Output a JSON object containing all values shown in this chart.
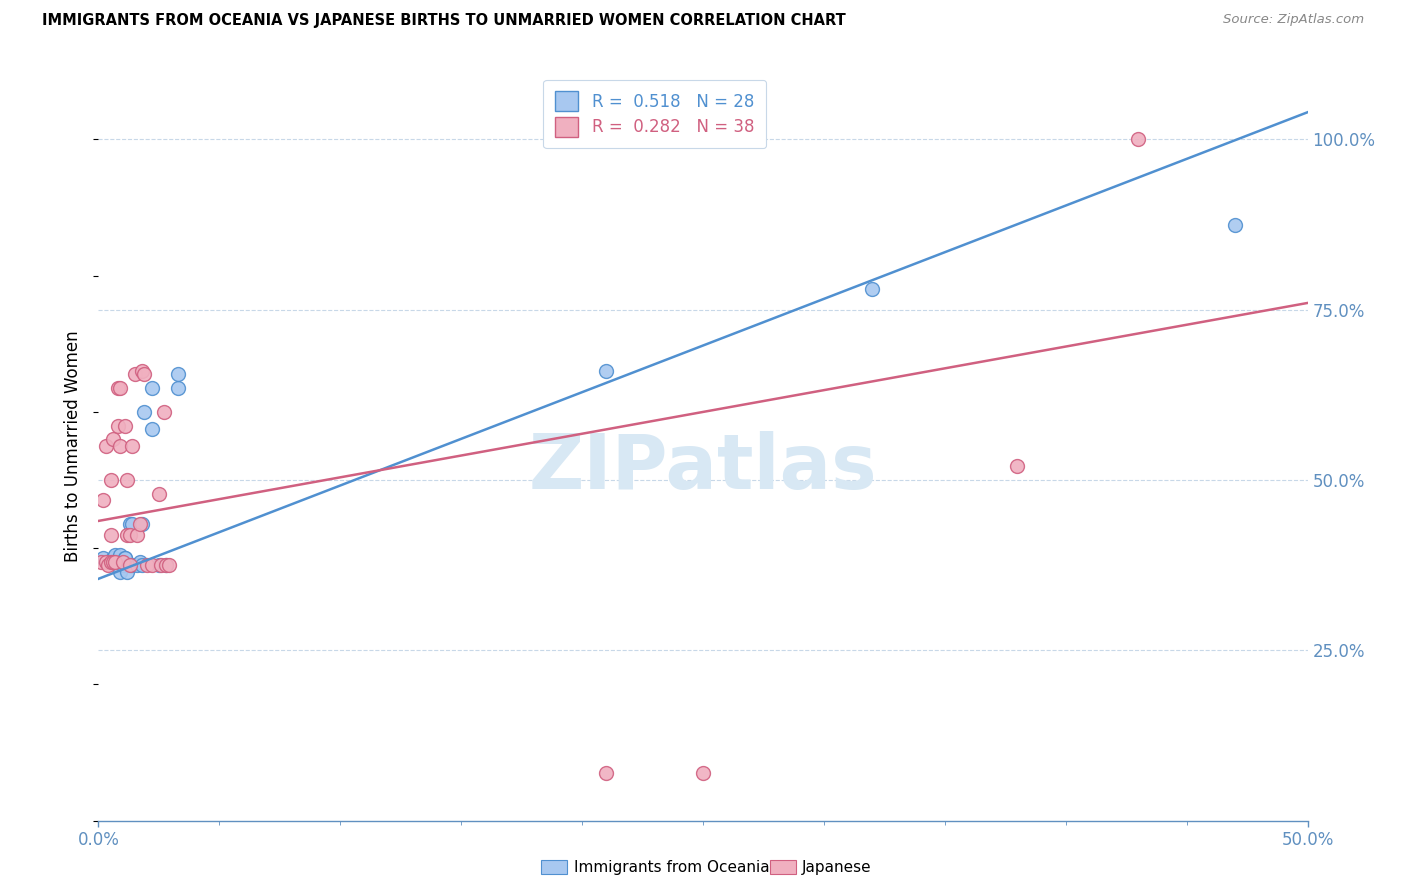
{
  "title": "IMMIGRANTS FROM OCEANIA VS JAPANESE BIRTHS TO UNMARRIED WOMEN CORRELATION CHART",
  "source": "Source: ZipAtlas.com",
  "ylabel": "Births to Unmarried Women",
  "legend_label1": "Immigrants from Oceania",
  "legend_label2": "Japanese",
  "r1": "0.518",
  "n1": "28",
  "r2": "0.282",
  "n2": "38",
  "color_blue": "#a8c8f0",
  "color_pink": "#f0b0c0",
  "color_line_blue": "#5090d0",
  "color_line_pink": "#d06080",
  "color_axis_text": "#6090c0",
  "color_grid": "#c8d8e8",
  "watermark_color": "#d8e8f4",
  "blue_x": [
    0.002,
    0.006,
    0.007,
    0.007,
    0.008,
    0.009,
    0.009,
    0.01,
    0.011,
    0.011,
    0.012,
    0.013,
    0.014,
    0.014,
    0.016,
    0.017,
    0.018,
    0.018,
    0.019,
    0.022,
    0.022,
    0.025,
    0.028,
    0.033,
    0.033,
    0.21,
    0.32,
    0.47
  ],
  "blue_y": [
    0.385,
    0.385,
    0.38,
    0.39,
    0.38,
    0.365,
    0.39,
    0.375,
    0.385,
    0.385,
    0.365,
    0.435,
    0.435,
    0.375,
    0.375,
    0.38,
    0.435,
    0.375,
    0.6,
    0.575,
    0.635,
    0.375,
    0.375,
    0.635,
    0.655,
    0.66,
    0.78,
    0.875
  ],
  "pink_x": [
    0.001,
    0.002,
    0.003,
    0.003,
    0.004,
    0.005,
    0.005,
    0.005,
    0.006,
    0.006,
    0.007,
    0.008,
    0.008,
    0.009,
    0.009,
    0.01,
    0.011,
    0.012,
    0.012,
    0.013,
    0.013,
    0.014,
    0.015,
    0.016,
    0.017,
    0.018,
    0.019,
    0.02,
    0.022,
    0.025,
    0.026,
    0.027,
    0.028,
    0.029,
    0.21,
    0.25,
    0.38,
    0.43
  ],
  "pink_y": [
    0.38,
    0.47,
    0.38,
    0.55,
    0.375,
    0.38,
    0.42,
    0.5,
    0.56,
    0.38,
    0.38,
    0.58,
    0.635,
    0.55,
    0.635,
    0.38,
    0.58,
    0.42,
    0.5,
    0.375,
    0.42,
    0.55,
    0.655,
    0.42,
    0.435,
    0.66,
    0.655,
    0.375,
    0.375,
    0.48,
    0.375,
    0.6,
    0.375,
    0.375,
    0.07,
    0.07,
    0.52,
    1.0
  ],
  "xlim": [
    0.0,
    0.5
  ],
  "ylim": [
    0.0,
    1.1
  ],
  "yticks": [
    0.25,
    0.5,
    0.75,
    1.0
  ],
  "blue_line_x": [
    0.0,
    0.5
  ],
  "blue_line_y": [
    0.355,
    1.04
  ],
  "pink_line_x": [
    0.0,
    0.5
  ],
  "pink_line_y": [
    0.44,
    0.76
  ]
}
